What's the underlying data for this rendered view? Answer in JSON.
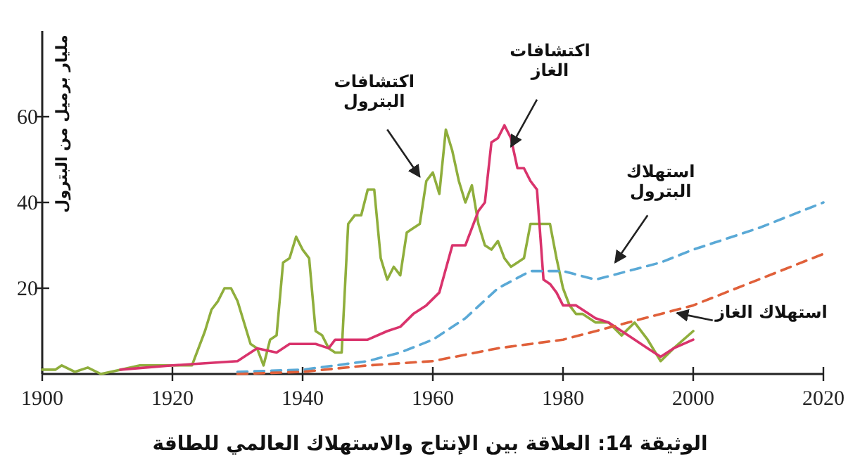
{
  "chart_data": {
    "type": "line",
    "title": "الوثيقة 14: العلاقة بين الإنتاج والاستهلاك العالمي للطاقة",
    "ylabel": "مليار برميل من البترول",
    "xlim": [
      1900,
      2020
    ],
    "ylim": [
      0,
      80
    ],
    "xticks": [
      1900,
      1920,
      1940,
      1960,
      1980,
      2000,
      2020
    ],
    "yticks": [
      20,
      40,
      60
    ],
    "series": [
      {
        "name": "اكتشافات البترول",
        "color": "#8fae3c",
        "line_style": "solid",
        "x": [
          1900,
          1902,
          1903,
          1905,
          1907,
          1909,
          1912,
          1915,
          1920,
          1923,
          1925,
          1926,
          1927,
          1928,
          1929,
          1930,
          1931,
          1932,
          1933,
          1934,
          1935,
          1936,
          1937,
          1938,
          1939,
          1940,
          1941,
          1942,
          1943,
          1944,
          1945,
          1946,
          1947,
          1948,
          1949,
          1950,
          1951,
          1952,
          1953,
          1954,
          1955,
          1956,
          1957,
          1958,
          1959,
          1960,
          1961,
          1962,
          1963,
          1964,
          1965,
          1966,
          1967,
          1968,
          1969,
          1970,
          1971,
          1972,
          1973,
          1974,
          1975,
          1976,
          1977,
          1978,
          1979,
          1980,
          1981,
          1982,
          1983,
          1985,
          1987,
          1989,
          1991,
          1993,
          1995,
          1997,
          2000
        ],
        "values": [
          1,
          1,
          2,
          0.5,
          1.5,
          0,
          1,
          2,
          2,
          2,
          10,
          15,
          17,
          20,
          20,
          17,
          12,
          7,
          6,
          2,
          8,
          9,
          26,
          27,
          32,
          29,
          27,
          10,
          9,
          6,
          5,
          5,
          35,
          37,
          37,
          43,
          43,
          27,
          22,
          25,
          23,
          33,
          34,
          35,
          45,
          47,
          42,
          57,
          52,
          45,
          40,
          44,
          35,
          30,
          29,
          31,
          27,
          25,
          26,
          27,
          35,
          35,
          35,
          35,
          27,
          20,
          16,
          14,
          14,
          12,
          12,
          9,
          12,
          8,
          3,
          6,
          10
        ]
      },
      {
        "name": "اكتشافات الغاز",
        "color": "#d9336c",
        "line_style": "solid",
        "x": [
          1912,
          1920,
          1925,
          1930,
          1933,
          1936,
          1938,
          1942,
          1944,
          1945,
          1950,
          1953,
          1955,
          1957,
          1959,
          1961,
          1963,
          1965,
          1967,
          1968,
          1969,
          1970,
          1971,
          1972,
          1973,
          1974,
          1975,
          1976,
          1977,
          1978,
          1979,
          1980,
          1982,
          1985,
          1987,
          1990,
          1993,
          1995,
          1997,
          2000
        ],
        "values": [
          1,
          2,
          2.5,
          3,
          6,
          5,
          7,
          7,
          6,
          8,
          8,
          10,
          11,
          14,
          16,
          19,
          30,
          30,
          38,
          40,
          54,
          55,
          58,
          55,
          48,
          48,
          45,
          43,
          22,
          21,
          19,
          16,
          16,
          13,
          12,
          9,
          6,
          4,
          6,
          8
        ]
      },
      {
        "name": "استهلاك البترول",
        "color": "#5aa9d6",
        "line_style": "dashed",
        "x": [
          1930,
          1940,
          1950,
          1955,
          1960,
          1965,
          1970,
          1975,
          1980,
          1985,
          1990,
          1995,
          2000,
          2010,
          2020
        ],
        "values": [
          0.5,
          1,
          3,
          5,
          8,
          13,
          20,
          24,
          24,
          22,
          24,
          26,
          29,
          34,
          40
        ]
      },
      {
        "name": "استهلاك الغاز",
        "color": "#e0603a",
        "line_style": "dashed",
        "x": [
          1930,
          1940,
          1950,
          1960,
          1970,
          1980,
          1990,
          2000,
          2010,
          2020
        ],
        "values": [
          0,
          0.5,
          2,
          3,
          6,
          8,
          12,
          16,
          22,
          28
        ]
      }
    ]
  }
}
